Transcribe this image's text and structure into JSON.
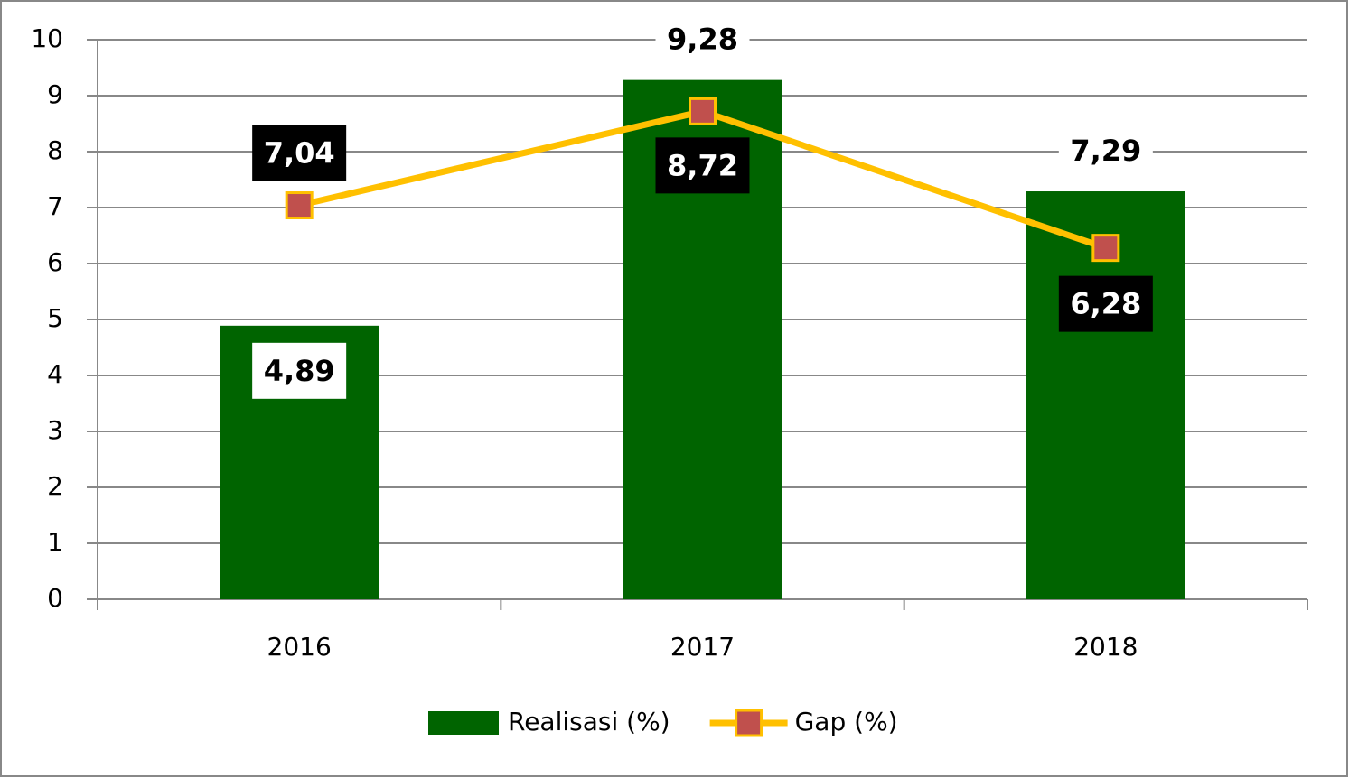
{
  "chart_data": {
    "type": "bar",
    "categories": [
      "2016",
      "2017",
      "2018"
    ],
    "series": [
      {
        "name": "Realisasi (%)",
        "type": "bar",
        "color": "#006400",
        "values": [
          4.89,
          9.28,
          7.29
        ],
        "value_labels": [
          "4,89",
          "9,28",
          "7,29"
        ]
      },
      {
        "name": "Gap (%)",
        "type": "line",
        "color": "#FFC000",
        "marker_color": "#C0504D",
        "values": [
          7.04,
          8.72,
          6.28
        ],
        "value_labels": [
          "7,04",
          "8,72",
          "6,28"
        ]
      }
    ],
    "ylim": [
      0,
      10
    ],
    "yticks": [
      0,
      1,
      2,
      3,
      4,
      5,
      6,
      7,
      8,
      9,
      10
    ],
    "grid": true,
    "legend": "bottom"
  }
}
